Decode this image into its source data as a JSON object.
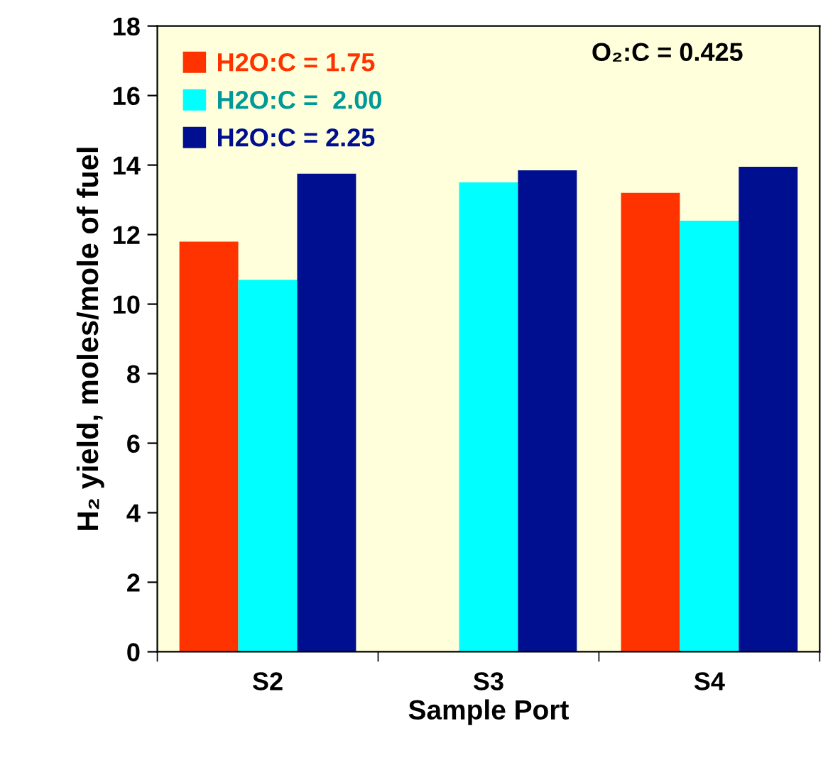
{
  "chart_data": {
    "type": "bar",
    "xlabel": "Sample Port",
    "ylabel": "H₂ yield, moles/mole of fuel",
    "categories": [
      "S2",
      "S3",
      "S4"
    ],
    "series": [
      {
        "name": "H2O:C = 1.75",
        "color": "#ff3300",
        "values": [
          11.8,
          null,
          13.2
        ]
      },
      {
        "name": "H2O:C =  2.00",
        "color": "#00ffff",
        "values": [
          10.7,
          13.5,
          12.4
        ]
      },
      {
        "name": "H2O:C = 2.25",
        "color": "#000f8f",
        "values": [
          13.75,
          13.85,
          13.95
        ]
      }
    ],
    "annotations": [
      "O₂:C = 0.425"
    ],
    "ylim": [
      0,
      18
    ],
    "yticks": [
      0,
      2,
      4,
      6,
      8,
      10,
      12,
      14,
      16,
      18
    ],
    "grid": false,
    "legend": "top left"
  }
}
